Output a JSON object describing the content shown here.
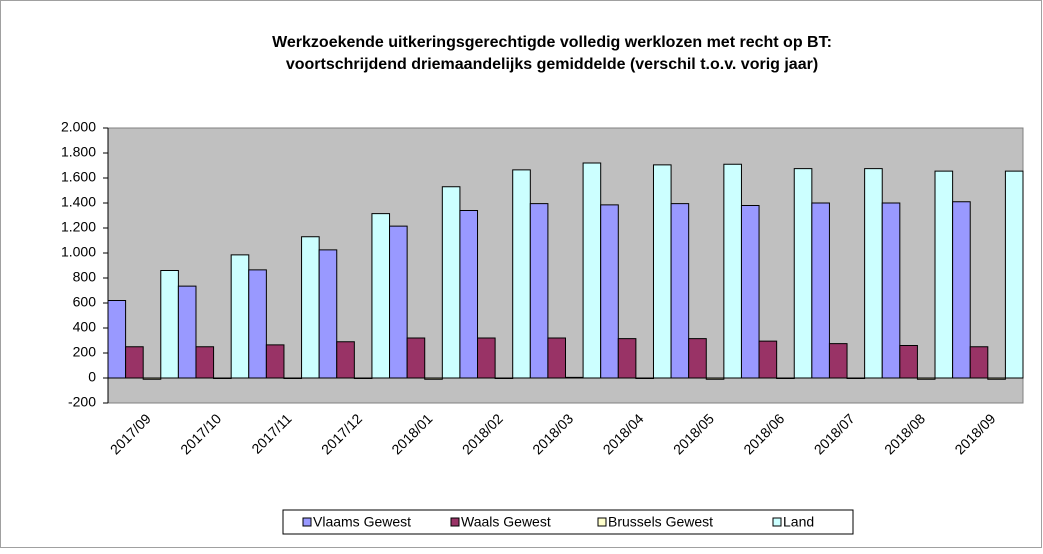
{
  "chart_data": {
    "type": "bar",
    "title": "Werkzoekende uitkeringsgerechtigde volledig werklozen met recht op BT:",
    "subtitle": "voortschrijdend driemaandelijks gemiddelde (verschil t.o.v. vorig jaar)",
    "categories": [
      "2017/09",
      "2017/10",
      "2017/11",
      "2017/12",
      "2018/01",
      "2018/02",
      "2018/03",
      "2018/04",
      "2018/05",
      "2018/06",
      "2018/07",
      "2018/08",
      "2018/09"
    ],
    "series": [
      {
        "name": "Vlaams Gewest",
        "color": "#9999ff",
        "values": [
          620,
          735,
          865,
          1025,
          1215,
          1340,
          1395,
          1385,
          1395,
          1380,
          1400,
          1400,
          1410
        ]
      },
      {
        "name": "Waals Gewest",
        "color": "#993366",
        "values": [
          250,
          250,
          265,
          290,
          320,
          320,
          320,
          315,
          315,
          295,
          275,
          260,
          250
        ]
      },
      {
        "name": "Brussels Gewest",
        "color": "#ffffcc",
        "values": [
          -10,
          0,
          0,
          0,
          -10,
          0,
          5,
          0,
          -10,
          0,
          0,
          -10,
          -10
        ]
      },
      {
        "name": "Land",
        "color": "#ccffff",
        "values": [
          860,
          985,
          1130,
          1315,
          1530,
          1665,
          1720,
          1705,
          1710,
          1675,
          1675,
          1655,
          1655
        ]
      }
    ],
    "ylim": [
      -200,
      2000
    ],
    "yticks": [
      -200,
      0,
      200,
      400,
      600,
      800,
      {
        "value": 1000,
        "label": "1.000"
      },
      {
        "value": 1200,
        "label": "1.200"
      },
      {
        "value": 1400,
        "label": "1.400"
      },
      {
        "value": 1600,
        "label": "1.600"
      },
      {
        "value": 1800,
        "label": "1.800"
      },
      {
        "value": 2000,
        "label": "2.000"
      }
    ],
    "grid": false,
    "plot_background": "#c0c0c0",
    "legend": "bottom"
  }
}
